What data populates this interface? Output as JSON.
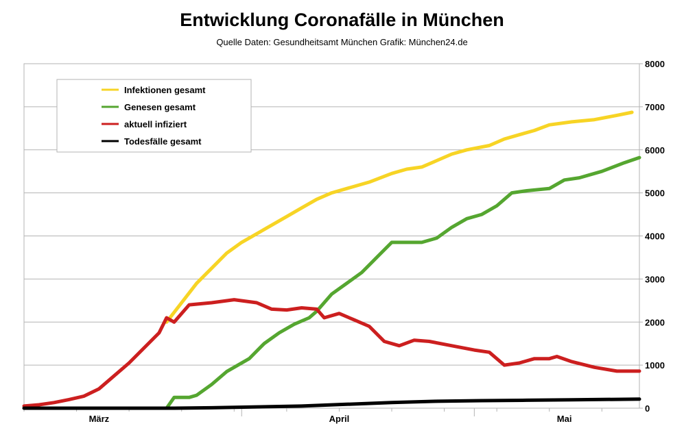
{
  "chart_data": {
    "type": "line",
    "title": "Entwicklung Coronafälle in München",
    "subtitle": "Quelle Daten: Gesundheitsamt München Grafik: München24.de",
    "xlabel": "",
    "ylabel": "",
    "ylim": [
      0,
      8000
    ],
    "yticks": [
      0,
      1000,
      2000,
      3000,
      4000,
      5000,
      6000,
      7000,
      8000
    ],
    "xlim": [
      "2020-02-29",
      "2020-05-21"
    ],
    "x_tick_labels": [
      {
        "label": "März",
        "date": "2020-03-10"
      },
      {
        "label": "April",
        "date": "2020-04-11"
      },
      {
        "label": "Mai",
        "date": "2020-05-11"
      }
    ],
    "y_axis_side": "right",
    "grid": "horizontal",
    "legend_position": "top-left",
    "series": [
      {
        "name": "Infektionen gesamt",
        "color": "#f7d425",
        "points": [
          [
            "2020-03-19",
            2000
          ],
          [
            "2020-03-21",
            2450
          ],
          [
            "2020-03-23",
            2900
          ],
          [
            "2020-03-25",
            3250
          ],
          [
            "2020-03-27",
            3600
          ],
          [
            "2020-03-29",
            3850
          ],
          [
            "2020-04-01",
            4150
          ],
          [
            "2020-04-04",
            4450
          ],
          [
            "2020-04-06",
            4650
          ],
          [
            "2020-04-08",
            4850
          ],
          [
            "2020-04-10",
            5000
          ],
          [
            "2020-04-12",
            5100
          ],
          [
            "2020-04-15",
            5250
          ],
          [
            "2020-04-18",
            5450
          ],
          [
            "2020-04-20",
            5550
          ],
          [
            "2020-04-22",
            5600
          ],
          [
            "2020-04-24",
            5750
          ],
          [
            "2020-04-26",
            5900
          ],
          [
            "2020-04-28",
            6000
          ],
          [
            "2020-05-01",
            6100
          ],
          [
            "2020-05-03",
            6250
          ],
          [
            "2020-05-05",
            6350
          ],
          [
            "2020-05-07",
            6450
          ],
          [
            "2020-05-09",
            6580
          ],
          [
            "2020-05-12",
            6650
          ],
          [
            "2020-05-15",
            6700
          ],
          [
            "2020-05-18",
            6800
          ],
          [
            "2020-05-20",
            6870
          ]
        ]
      },
      {
        "name": "Genesen gesamt",
        "color": "#55a630",
        "points": [
          [
            "2020-03-19",
            0
          ],
          [
            "2020-03-20",
            250
          ],
          [
            "2020-03-22",
            250
          ],
          [
            "2020-03-23",
            300
          ],
          [
            "2020-03-25",
            550
          ],
          [
            "2020-03-27",
            850
          ],
          [
            "2020-03-30",
            1150
          ],
          [
            "2020-04-01",
            1500
          ],
          [
            "2020-04-03",
            1750
          ],
          [
            "2020-04-05",
            1950
          ],
          [
            "2020-04-07",
            2100
          ],
          [
            "2020-04-08",
            2250
          ],
          [
            "2020-04-10",
            2650
          ],
          [
            "2020-04-12",
            2900
          ],
          [
            "2020-04-14",
            3150
          ],
          [
            "2020-04-16",
            3500
          ],
          [
            "2020-04-18",
            3850
          ],
          [
            "2020-04-20",
            3850
          ],
          [
            "2020-04-22",
            3850
          ],
          [
            "2020-04-24",
            3950
          ],
          [
            "2020-04-26",
            4200
          ],
          [
            "2020-04-28",
            4400
          ],
          [
            "2020-04-30",
            4500
          ],
          [
            "2020-05-02",
            4700
          ],
          [
            "2020-05-04",
            5000
          ],
          [
            "2020-05-06",
            5050
          ],
          [
            "2020-05-09",
            5100
          ],
          [
            "2020-05-11",
            5300
          ],
          [
            "2020-05-13",
            5350
          ],
          [
            "2020-05-16",
            5500
          ],
          [
            "2020-05-19",
            5700
          ],
          [
            "2020-05-21",
            5820
          ]
        ]
      },
      {
        "name": "aktuell infiziert",
        "color": "#cc1f1f",
        "points": [
          [
            "2020-02-29",
            50
          ],
          [
            "2020-03-02",
            80
          ],
          [
            "2020-03-04",
            130
          ],
          [
            "2020-03-06",
            200
          ],
          [
            "2020-03-08",
            280
          ],
          [
            "2020-03-10",
            450
          ],
          [
            "2020-03-12",
            750
          ],
          [
            "2020-03-14",
            1050
          ],
          [
            "2020-03-16",
            1400
          ],
          [
            "2020-03-18",
            1750
          ],
          [
            "2020-03-19",
            2100
          ],
          [
            "2020-03-20",
            2000
          ],
          [
            "2020-03-22",
            2400
          ],
          [
            "2020-03-25",
            2450
          ],
          [
            "2020-03-28",
            2520
          ],
          [
            "2020-03-31",
            2450
          ],
          [
            "2020-04-02",
            2300
          ],
          [
            "2020-04-04",
            2280
          ],
          [
            "2020-04-06",
            2330
          ],
          [
            "2020-04-08",
            2300
          ],
          [
            "2020-04-09",
            2100
          ],
          [
            "2020-04-11",
            2200
          ],
          [
            "2020-04-13",
            2050
          ],
          [
            "2020-04-15",
            1900
          ],
          [
            "2020-04-17",
            1550
          ],
          [
            "2020-04-19",
            1450
          ],
          [
            "2020-04-21",
            1580
          ],
          [
            "2020-04-23",
            1550
          ],
          [
            "2020-04-26",
            1450
          ],
          [
            "2020-04-29",
            1350
          ],
          [
            "2020-05-01",
            1300
          ],
          [
            "2020-05-03",
            1000
          ],
          [
            "2020-05-05",
            1050
          ],
          [
            "2020-05-07",
            1150
          ],
          [
            "2020-05-09",
            1150
          ],
          [
            "2020-05-10",
            1200
          ],
          [
            "2020-05-12",
            1080
          ],
          [
            "2020-05-15",
            950
          ],
          [
            "2020-05-18",
            860
          ],
          [
            "2020-05-21",
            860
          ]
        ]
      },
      {
        "name": "Todesfälle gesamt",
        "color": "#000000",
        "points": [
          [
            "2020-02-29",
            0
          ],
          [
            "2020-03-20",
            0
          ],
          [
            "2020-03-25",
            10
          ],
          [
            "2020-03-31",
            30
          ],
          [
            "2020-04-06",
            50
          ],
          [
            "2020-04-12",
            90
          ],
          [
            "2020-04-18",
            130
          ],
          [
            "2020-04-24",
            160
          ],
          [
            "2020-04-30",
            175
          ],
          [
            "2020-05-06",
            185
          ],
          [
            "2020-05-12",
            195
          ],
          [
            "2020-05-21",
            210
          ]
        ]
      }
    ]
  }
}
